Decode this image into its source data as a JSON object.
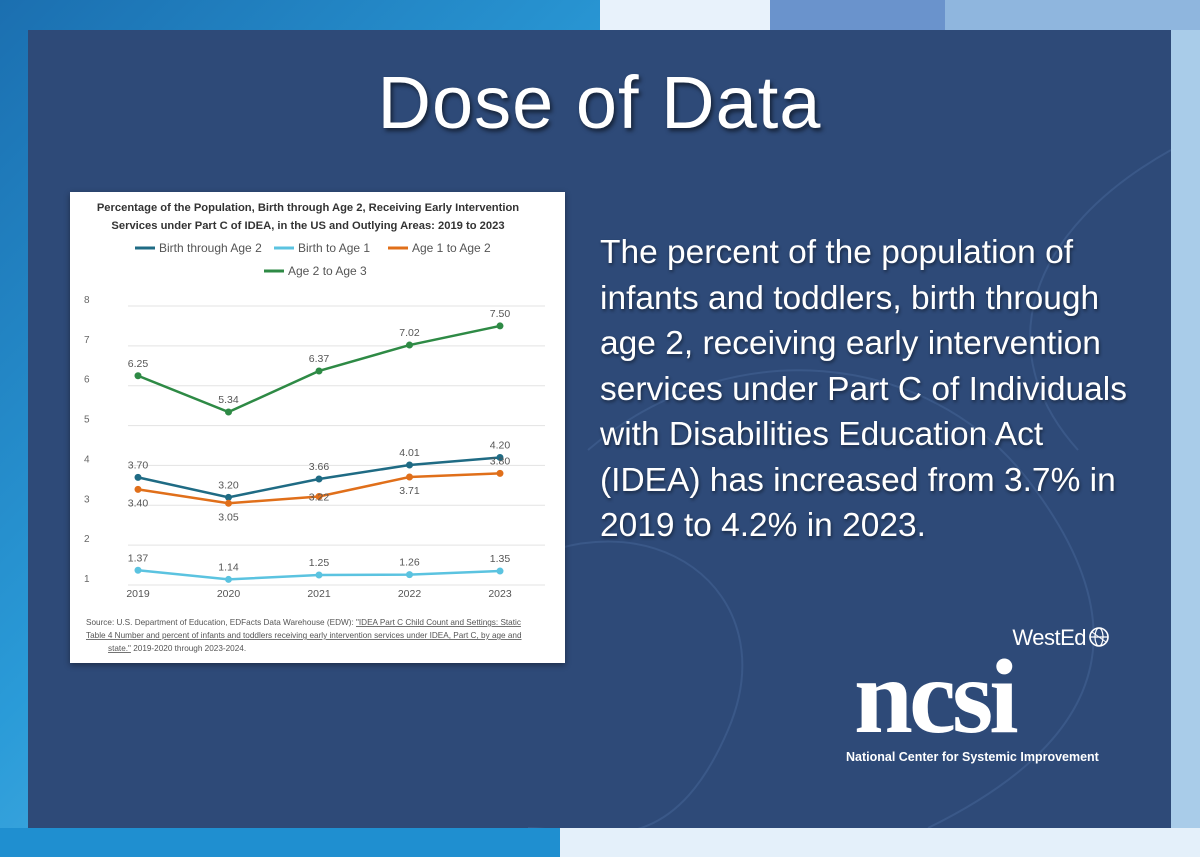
{
  "page": {
    "title": "Dose of Data",
    "body_text": "The percent of the population of infants and toddlers, birth through age 2, receiving early intervention services under Part C of Individuals with Disabilities Education Act (IDEA) has increased from 3.7% in 2019 to 4.2% in 2023.",
    "logo": {
      "wested": "WestEd",
      "ncsi": "ncsi",
      "ncsi_full": "National Center for Systemic Improvement"
    }
  },
  "colors": {
    "panel": "#2e4a78",
    "birth_through_2": "#1f6b84",
    "birth_to_1": "#5bc3e0",
    "age_1_to_2": "#e06f1a",
    "age_2_to_3": "#2e8a45"
  },
  "chart_data": {
    "type": "line",
    "title_line1": "Percentage of the Population, Birth through Age 2, Receiving Early Intervention",
    "title_line2": "Services under Part C of IDEA, in the US and Outlying Areas: 2019 to 2023",
    "x": [
      "2019",
      "2020",
      "2021",
      "2022",
      "2023"
    ],
    "ylim": [
      1,
      8
    ],
    "yticks": [
      "1",
      "2",
      "3",
      "4",
      "5",
      "6",
      "7",
      "8"
    ],
    "series": [
      {
        "name": "Birth through Age 2",
        "color": "#1f6b84",
        "values": [
          3.7,
          3.2,
          3.66,
          4.01,
          4.2
        ],
        "labels": [
          "3.70",
          "3.20",
          "3.66",
          "4.01",
          "4.20"
        ],
        "label_pos": [
          "above",
          "above",
          "above",
          "above",
          "above"
        ]
      },
      {
        "name": "Birth to Age 1",
        "color": "#5bc3e0",
        "values": [
          1.37,
          1.14,
          1.25,
          1.26,
          1.35
        ],
        "labels": [
          "1.37",
          "1.14",
          "1.25",
          "1.26",
          "1.35"
        ],
        "label_pos": [
          "above",
          "above",
          "above",
          "above",
          "above"
        ]
      },
      {
        "name": "Age 1 to Age 2",
        "color": "#e06f1a",
        "values": [
          3.4,
          3.05,
          3.22,
          3.71,
          3.8
        ],
        "labels": [
          "3.40",
          "3.05",
          "3.22",
          "3.71",
          "3.80"
        ],
        "label_pos": [
          "below",
          "below",
          "mid",
          "below",
          "above"
        ]
      },
      {
        "name": "Age 2 to Age 3",
        "color": "#2e8a45",
        "values": [
          6.25,
          5.34,
          6.37,
          7.02,
          7.5
        ],
        "labels": [
          "6.25",
          "5.34",
          "6.37",
          "7.02",
          "7.50"
        ],
        "label_pos": [
          "above",
          "above",
          "above",
          "above",
          "above"
        ]
      }
    ],
    "source": {
      "prefix": "Source: U.S. Department of Education, EDFacts Data Warehouse (EDW): ",
      "link_line1": "\"IDEA Part C Child Count and Settings: Static",
      "link_line2": "Table 4 Number and percent of infants and toddlers receiving early intervention services under IDEA, Part C, by age and",
      "link_line3": "state.\"",
      "suffix": " 2019-2020 through 2023-2024."
    }
  }
}
